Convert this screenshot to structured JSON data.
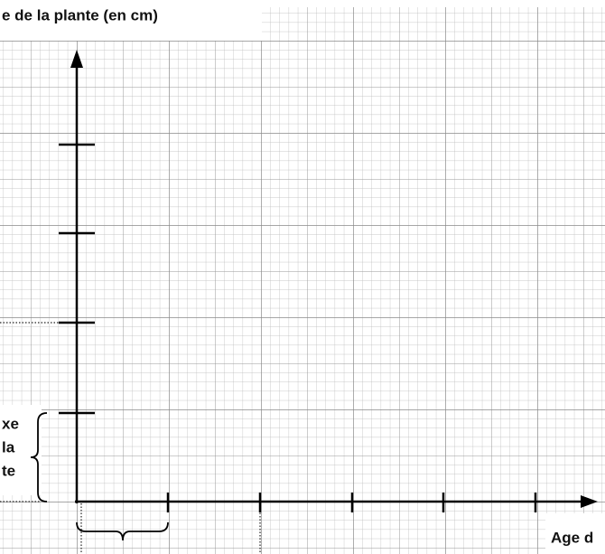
{
  "header": {
    "title": "e de la plante (en cm)"
  },
  "side_label": {
    "lines": [
      "xe",
      "la",
      "te"
    ]
  },
  "footer": {
    "label": "Age d"
  }
}
